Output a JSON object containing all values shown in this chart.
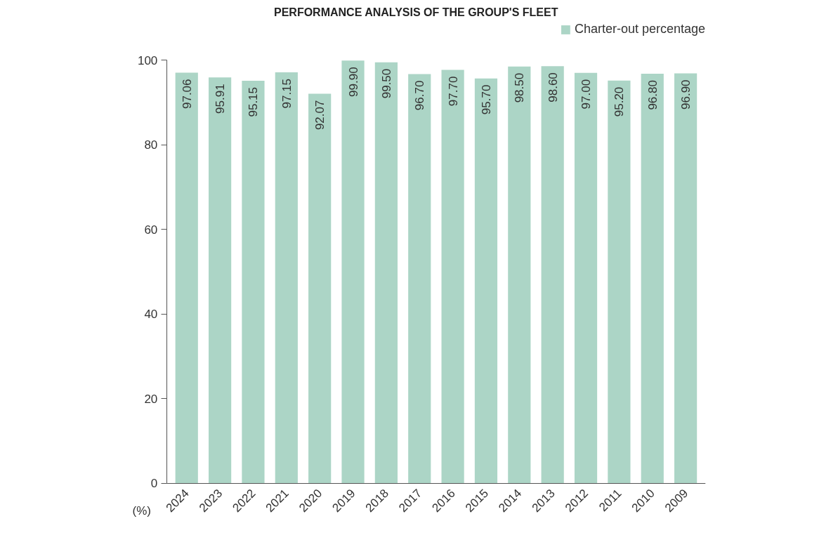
{
  "chart_data": {
    "type": "bar",
    "title": "PERFORMANCE ANALYSIS OF THE GROUP'S FLEET",
    "ylabel": "(%)",
    "categories": [
      "2024",
      "2023",
      "2022",
      "2021",
      "2020",
      "2019",
      "2018",
      "2017",
      "2016",
      "2015",
      "2014",
      "2013",
      "2012",
      "2011",
      "2010",
      "2009"
    ],
    "series": [
      {
        "name": "Charter-out percentage",
        "color": "#acd5c6",
        "values": [
          97.06,
          95.91,
          95.15,
          97.15,
          92.07,
          99.9,
          99.5,
          96.7,
          97.7,
          95.7,
          98.5,
          98.6,
          97.0,
          95.2,
          96.8,
          96.9
        ]
      }
    ],
    "value_labels": [
      "97.06",
      "95.91",
      "95.15",
      "97.15",
      "92.07",
      "99.90",
      "99.50",
      "96.70",
      "97.70",
      "95.70",
      "98.50",
      "98.60",
      "97.00",
      "95.20",
      "96.80",
      "96.90"
    ],
    "ylim": [
      0,
      100
    ],
    "yticks": [
      0,
      20,
      40,
      60,
      80,
      100
    ],
    "grid": false,
    "legend": "top right"
  }
}
